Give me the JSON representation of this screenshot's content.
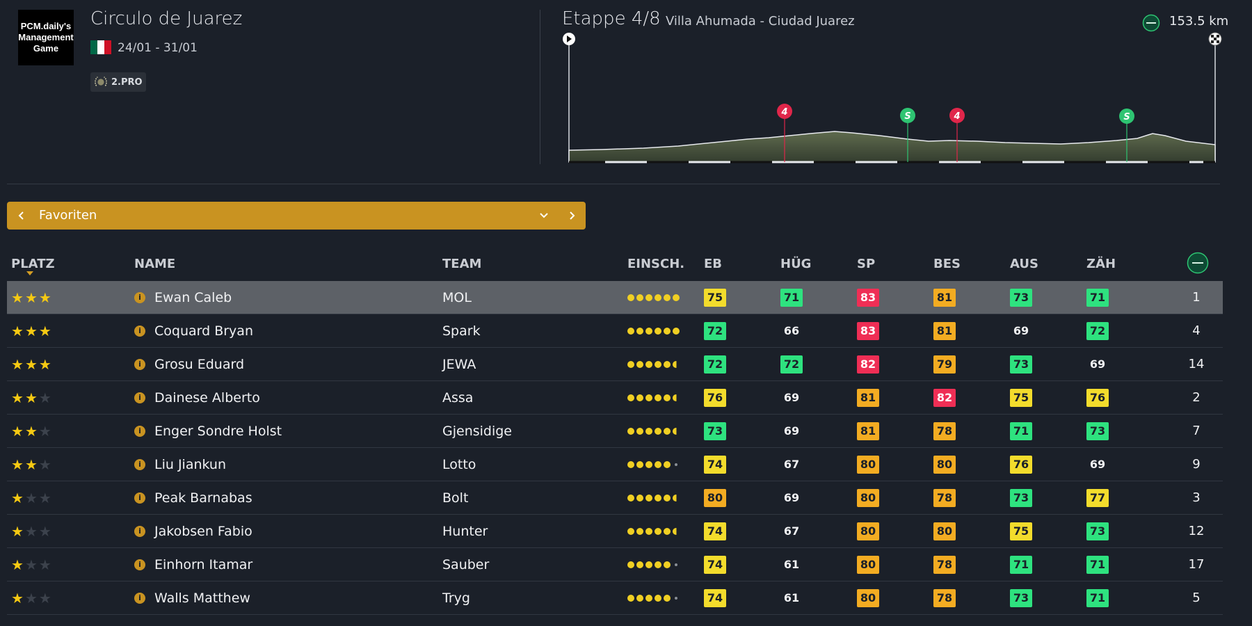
{
  "race": {
    "logo_text": "PCM.daily's\nManagement\nGame",
    "title": "Circulo de Juarez",
    "dates": "24/01 - 31/01",
    "flag_colors": [
      "#006847",
      "#ffffff",
      "#ce1126"
    ],
    "category": "2.PRO"
  },
  "stage": {
    "title": "Etappe 4/8",
    "route": "Villa Ahumada - Ciudad Juarez",
    "distance": "153.5 km",
    "distance_icon": "flat-stage-icon",
    "markers": [
      {
        "label": "4",
        "type": "climb",
        "color": "#e0264a"
      },
      {
        "label": "S",
        "type": "sprint",
        "color": "#2ec472"
      },
      {
        "label": "4",
        "type": "climb",
        "color": "#e0264a"
      },
      {
        "label": "S",
        "type": "sprint",
        "color": "#2ec472"
      }
    ]
  },
  "selector": {
    "label": "Favoriten",
    "prev_icon": "chevron-left-icon",
    "dropdown_icon": "chevron-down-icon",
    "next_icon": "chevron-right-icon"
  },
  "table": {
    "headers": [
      "PLATZ",
      "NAME",
      "TEAM",
      "EINSCH.",
      "EB",
      "HÜG",
      "SP",
      "BES",
      "AUS",
      "ZÄH"
    ],
    "rows": [
      {
        "stars": 3,
        "name": "Ewan Caleb",
        "team": "MOL",
        "rating": 6,
        "stats": [
          [
            "75",
            "y"
          ],
          [
            "71",
            "g"
          ],
          [
            "83",
            "r"
          ],
          [
            "81",
            "o"
          ],
          [
            "73",
            "g"
          ],
          [
            "71",
            "g"
          ]
        ],
        "pos": "1",
        "selected": true
      },
      {
        "stars": 3,
        "name": "Coquard Bryan",
        "team": "Spark",
        "rating": 6,
        "stats": [
          [
            "72",
            "g"
          ],
          [
            "66",
            "n"
          ],
          [
            "83",
            "r"
          ],
          [
            "81",
            "o"
          ],
          [
            "69",
            "n"
          ],
          [
            "72",
            "g"
          ]
        ],
        "pos": "4"
      },
      {
        "stars": 3,
        "name": "Grosu Eduard",
        "team": "JEWA",
        "rating": 5.5,
        "stats": [
          [
            "72",
            "g"
          ],
          [
            "72",
            "g"
          ],
          [
            "82",
            "r"
          ],
          [
            "79",
            "o"
          ],
          [
            "73",
            "g"
          ],
          [
            "69",
            "n"
          ]
        ],
        "pos": "14"
      },
      {
        "stars": 2,
        "name": "Dainese Alberto",
        "team": "Assa",
        "rating": 5.5,
        "stats": [
          [
            "76",
            "y"
          ],
          [
            "69",
            "n"
          ],
          [
            "81",
            "o"
          ],
          [
            "82",
            "r"
          ],
          [
            "75",
            "y"
          ],
          [
            "76",
            "y"
          ]
        ],
        "pos": "2"
      },
      {
        "stars": 2,
        "name": "Enger Sondre Holst",
        "team": "Gjensidige",
        "rating": 5.5,
        "stats": [
          [
            "73",
            "g"
          ],
          [
            "69",
            "n"
          ],
          [
            "81",
            "o"
          ],
          [
            "78",
            "o"
          ],
          [
            "71",
            "g"
          ],
          [
            "73",
            "g"
          ]
        ],
        "pos": "7"
      },
      {
        "stars": 2,
        "name": "Liu Jiankun",
        "team": "Lotto",
        "rating": 5,
        "stats": [
          [
            "74",
            "y"
          ],
          [
            "67",
            "n"
          ],
          [
            "80",
            "o"
          ],
          [
            "80",
            "o"
          ],
          [
            "76",
            "y"
          ],
          [
            "69",
            "n"
          ]
        ],
        "pos": "9"
      },
      {
        "stars": 1,
        "name": "Peak Barnabas",
        "team": "Bolt",
        "rating": 5.5,
        "stats": [
          [
            "80",
            "o"
          ],
          [
            "69",
            "n"
          ],
          [
            "80",
            "o"
          ],
          [
            "78",
            "o"
          ],
          [
            "73",
            "g"
          ],
          [
            "77",
            "y"
          ]
        ],
        "pos": "3"
      },
      {
        "stars": 1,
        "name": "Jakobsen Fabio",
        "team": "Hunter",
        "rating": 5.5,
        "stats": [
          [
            "74",
            "y"
          ],
          [
            "67",
            "n"
          ],
          [
            "80",
            "o"
          ],
          [
            "80",
            "o"
          ],
          [
            "75",
            "y"
          ],
          [
            "73",
            "g"
          ]
        ],
        "pos": "12"
      },
      {
        "stars": 1,
        "name": "Einhorn Itamar",
        "team": "Sauber",
        "rating": 5,
        "stats": [
          [
            "74",
            "y"
          ],
          [
            "61",
            "n"
          ],
          [
            "80",
            "o"
          ],
          [
            "78",
            "o"
          ],
          [
            "71",
            "g"
          ],
          [
            "71",
            "g"
          ]
        ],
        "pos": "17"
      },
      {
        "stars": 1,
        "name": "Walls Matthew",
        "team": "Tryg",
        "rating": 5,
        "stats": [
          [
            "74",
            "y"
          ],
          [
            "61",
            "n"
          ],
          [
            "80",
            "o"
          ],
          [
            "78",
            "o"
          ],
          [
            "73",
            "g"
          ],
          [
            "71",
            "g"
          ]
        ],
        "pos": "5"
      }
    ]
  }
}
